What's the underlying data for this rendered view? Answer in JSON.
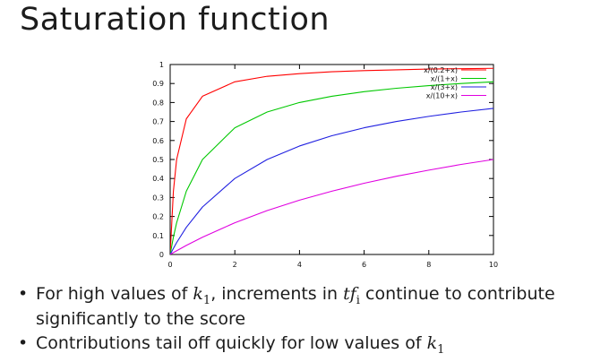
{
  "slide": {
    "title": "Saturation function",
    "bullets": [
      {
        "before": "For high values of ",
        "math1": "k",
        "sub1": "1",
        "middle": ", increments in ",
        "math2": "tf",
        "sub2": "i",
        "after": " continue to contribute significantly to the score"
      },
      {
        "before": "Contributions tail off quickly for low values of ",
        "math1": "k",
        "sub1": "1"
      }
    ]
  },
  "chart_data": {
    "type": "line",
    "title": "",
    "xlabel": "",
    "ylabel": "",
    "xlim": [
      0,
      10
    ],
    "ylim": [
      0,
      1
    ],
    "x_ticks": [
      "0",
      "2",
      "4",
      "6",
      "8",
      "10"
    ],
    "y_ticks": [
      "0",
      "0.1",
      "0.2",
      "0.3",
      "0.4",
      "0.5",
      "0.6",
      "0.7",
      "0.8",
      "0.9",
      "1"
    ],
    "legend_position": "top-right",
    "grid": false,
    "x": [
      0,
      0.1,
      0.2,
      0.5,
      1,
      2,
      3,
      4,
      5,
      6,
      7,
      8,
      9,
      10
    ],
    "series": [
      {
        "name": "x/(0.2+x)",
        "color": "#ff0000",
        "values": [
          0,
          0.333,
          0.5,
          0.714,
          0.833,
          0.909,
          0.938,
          0.952,
          0.962,
          0.968,
          0.972,
          0.976,
          0.978,
          0.98
        ]
      },
      {
        "name": "x/(1+x)",
        "color": "#00c800",
        "values": [
          0,
          0.091,
          0.167,
          0.333,
          0.5,
          0.667,
          0.75,
          0.8,
          0.833,
          0.857,
          0.875,
          0.889,
          0.9,
          0.909
        ]
      },
      {
        "name": "x/(3+x)",
        "color": "#2020e0",
        "values": [
          0,
          0.032,
          0.0625,
          0.143,
          0.25,
          0.4,
          0.5,
          0.571,
          0.625,
          0.667,
          0.7,
          0.727,
          0.75,
          0.769
        ]
      },
      {
        "name": "x/(10+x)",
        "color": "#e000e0",
        "values": [
          0,
          0.0099,
          0.0196,
          0.0476,
          0.0909,
          0.167,
          0.231,
          0.286,
          0.333,
          0.375,
          0.412,
          0.444,
          0.474,
          0.5
        ]
      }
    ]
  }
}
